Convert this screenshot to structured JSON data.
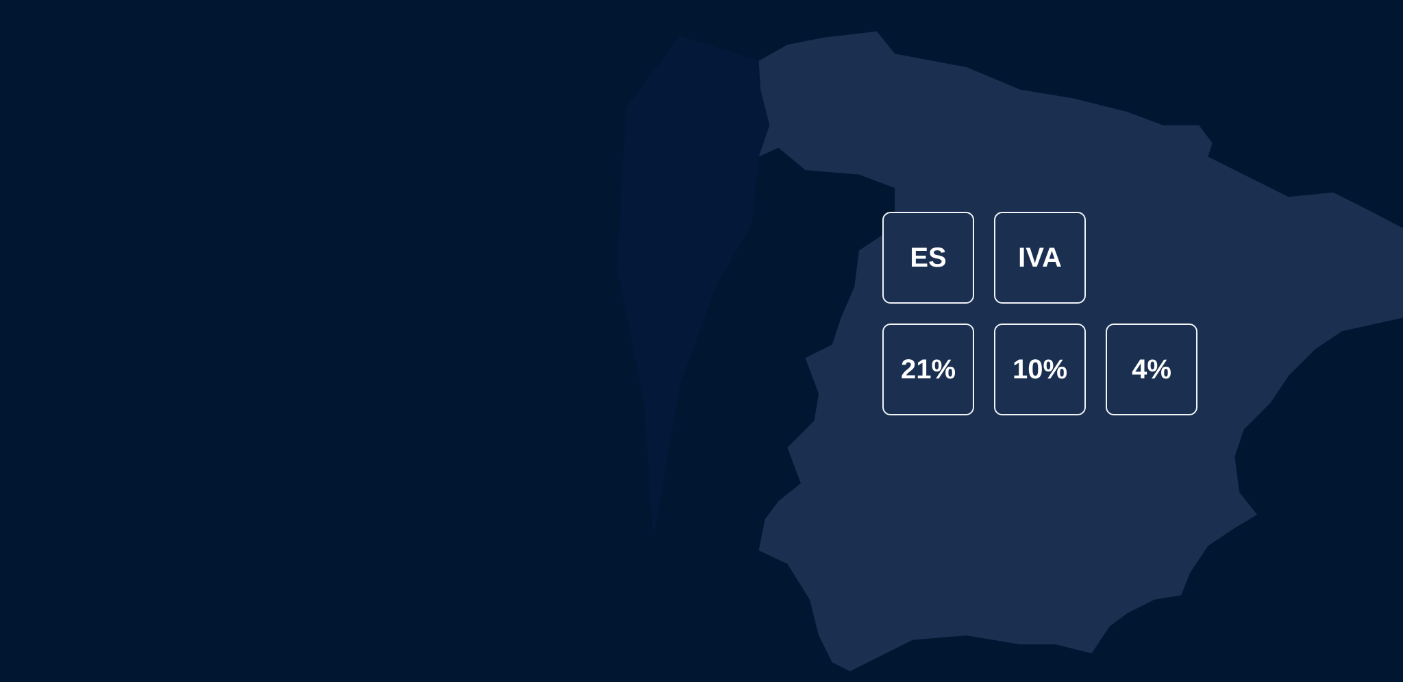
{
  "colors": {
    "background": "#011631",
    "spain_fill": "#1b2f50",
    "tile_border": "#f2f4f8",
    "text": "#ffffff"
  },
  "tiles": {
    "country": "ES",
    "tax": "IVA",
    "rates": [
      "21%",
      "10%",
      "4%"
    ]
  }
}
